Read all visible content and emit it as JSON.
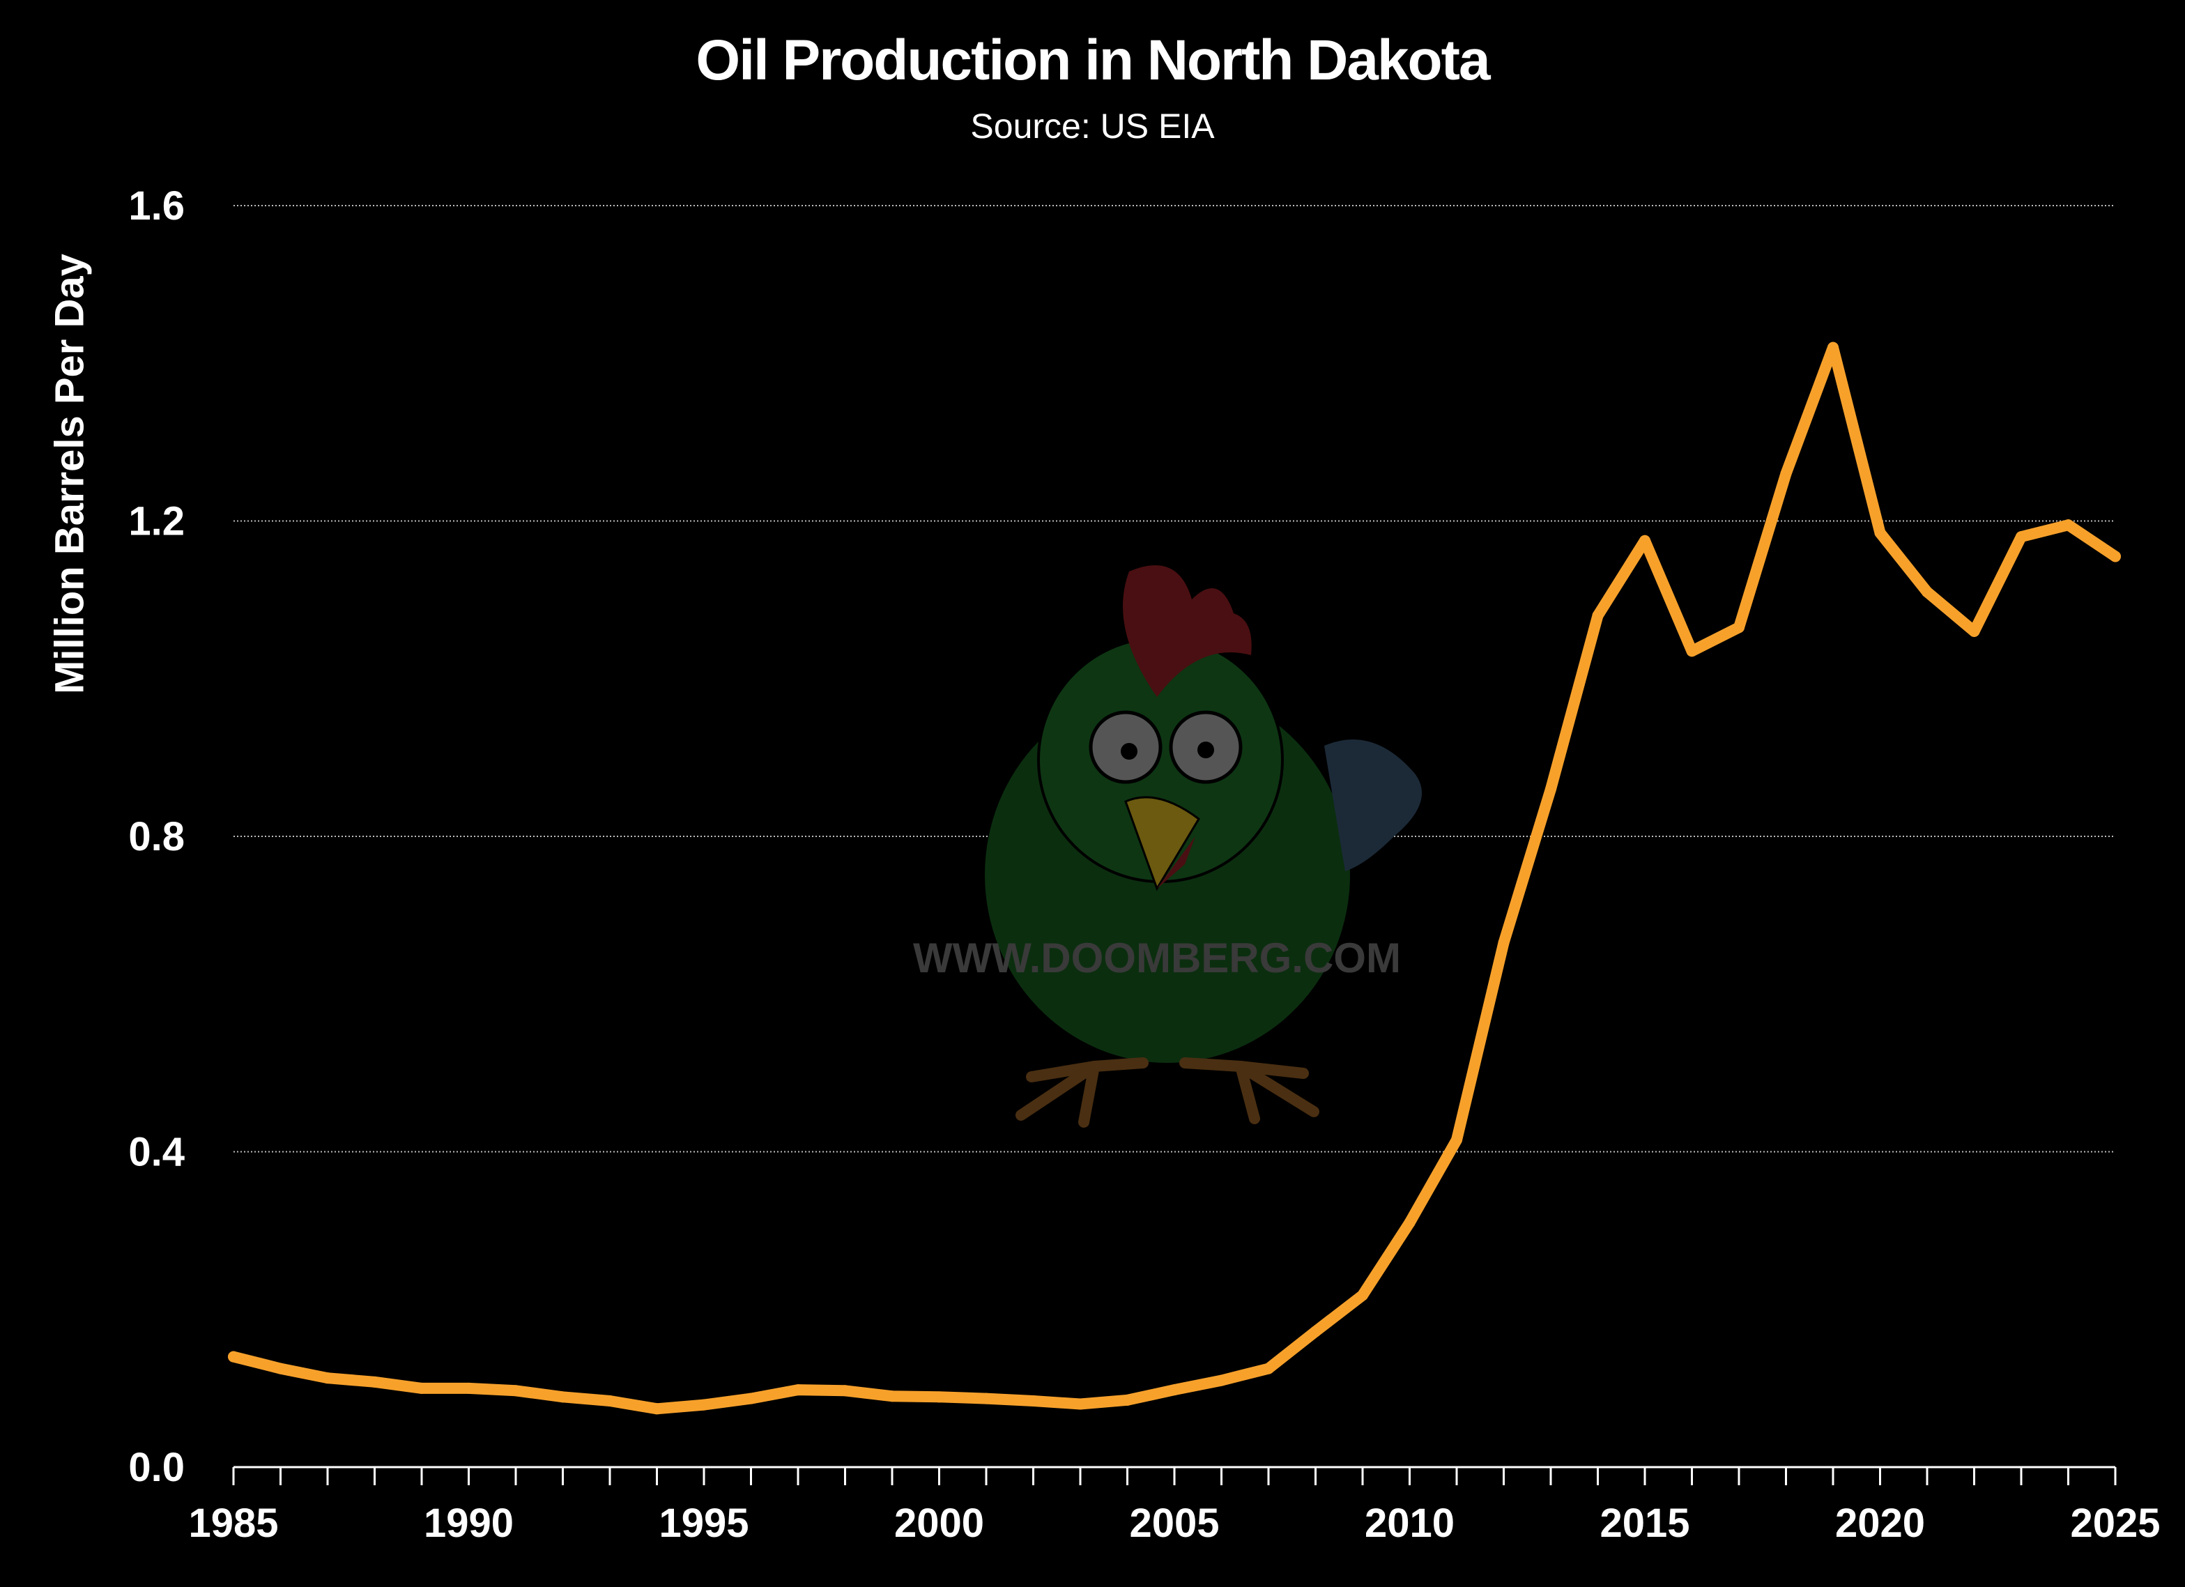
{
  "chart_data": {
    "type": "line",
    "title": "Oil Production in North Dakota",
    "subtitle": "Source: US EIA",
    "xlabel": "",
    "ylabel": "Million Barrels Per Day",
    "xlim": [
      1985,
      2025
    ],
    "ylim": [
      0,
      1.6
    ],
    "x_ticks": [
      "1985",
      "1990",
      "1995",
      "2000",
      "2005",
      "2010",
      "2015",
      "2020",
      "2025"
    ],
    "y_ticks": [
      "0.0",
      "0.4",
      "0.8",
      "1.2",
      "1.6"
    ],
    "grid": true,
    "line_color": "#F7A12B",
    "x": [
      1985,
      1986,
      1987,
      1988,
      1989,
      1990,
      1991,
      1992,
      1993,
      1994,
      1995,
      1996,
      1997,
      1998,
      1999,
      2000,
      2001,
      2002,
      2003,
      2004,
      2005,
      2006,
      2007,
      2008,
      2009,
      2010,
      2011,
      2012,
      2013,
      2014,
      2015,
      2016,
      2017,
      2018,
      2019,
      2020,
      2021,
      2022,
      2023,
      2024,
      2025
    ],
    "values": [
      0.14,
      0.125,
      0.113,
      0.108,
      0.1,
      0.1,
      0.097,
      0.089,
      0.084,
      0.074,
      0.079,
      0.087,
      0.098,
      0.097,
      0.09,
      0.089,
      0.087,
      0.084,
      0.08,
      0.085,
      0.098,
      0.11,
      0.125,
      0.172,
      0.218,
      0.31,
      0.415,
      0.665,
      0.86,
      1.08,
      1.175,
      1.035,
      1.065,
      1.26,
      1.42,
      1.185,
      1.11,
      1.06,
      1.18,
      1.195,
      1.155
    ]
  },
  "watermark": {
    "text": "WWW.DOOMBERG.COM"
  }
}
